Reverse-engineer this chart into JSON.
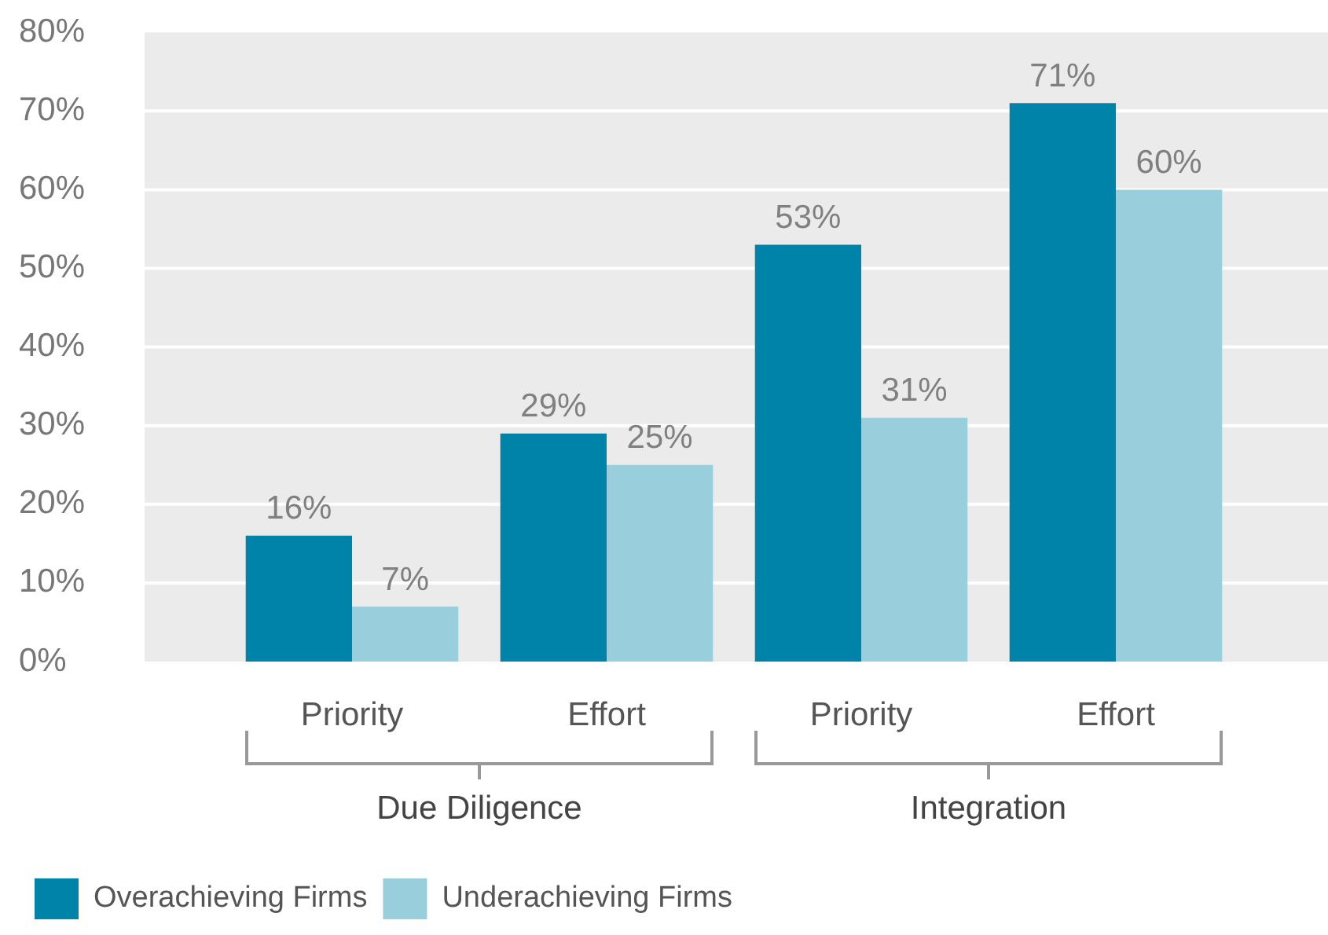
{
  "chart_data": {
    "type": "bar",
    "categories": [
      "Priority",
      "Effort",
      "Priority",
      "Effort"
    ],
    "series": [
      {
        "name": "Overachieving Firms",
        "color": "#0083a9",
        "values": [
          16,
          29,
          53,
          71
        ]
      },
      {
        "name": "Underachieving Firms",
        "color": "#99cfdd",
        "values": [
          7,
          25,
          31,
          60
        ]
      }
    ],
    "ylim": [
      0,
      80
    ],
    "yticks": [
      {
        "value": 0,
        "label": "0%"
      },
      {
        "value": 10,
        "label": "10%"
      },
      {
        "value": 20,
        "label": "20%"
      },
      {
        "value": 30,
        "label": "30%"
      },
      {
        "value": 40,
        "label": "40%"
      },
      {
        "value": 50,
        "label": "50%"
      },
      {
        "value": 60,
        "label": "60%"
      },
      {
        "value": 70,
        "label": "70%"
      },
      {
        "value": 80,
        "label": "80%"
      }
    ],
    "value_labels": [
      [
        "16%",
        "29%",
        "53%",
        "71%"
      ],
      [
        "7%",
        "25%",
        "31%",
        "60%"
      ]
    ],
    "annotations": [
      "Due Diligence",
      "Integration"
    ],
    "grid": "y",
    "legend": "bottom left"
  }
}
